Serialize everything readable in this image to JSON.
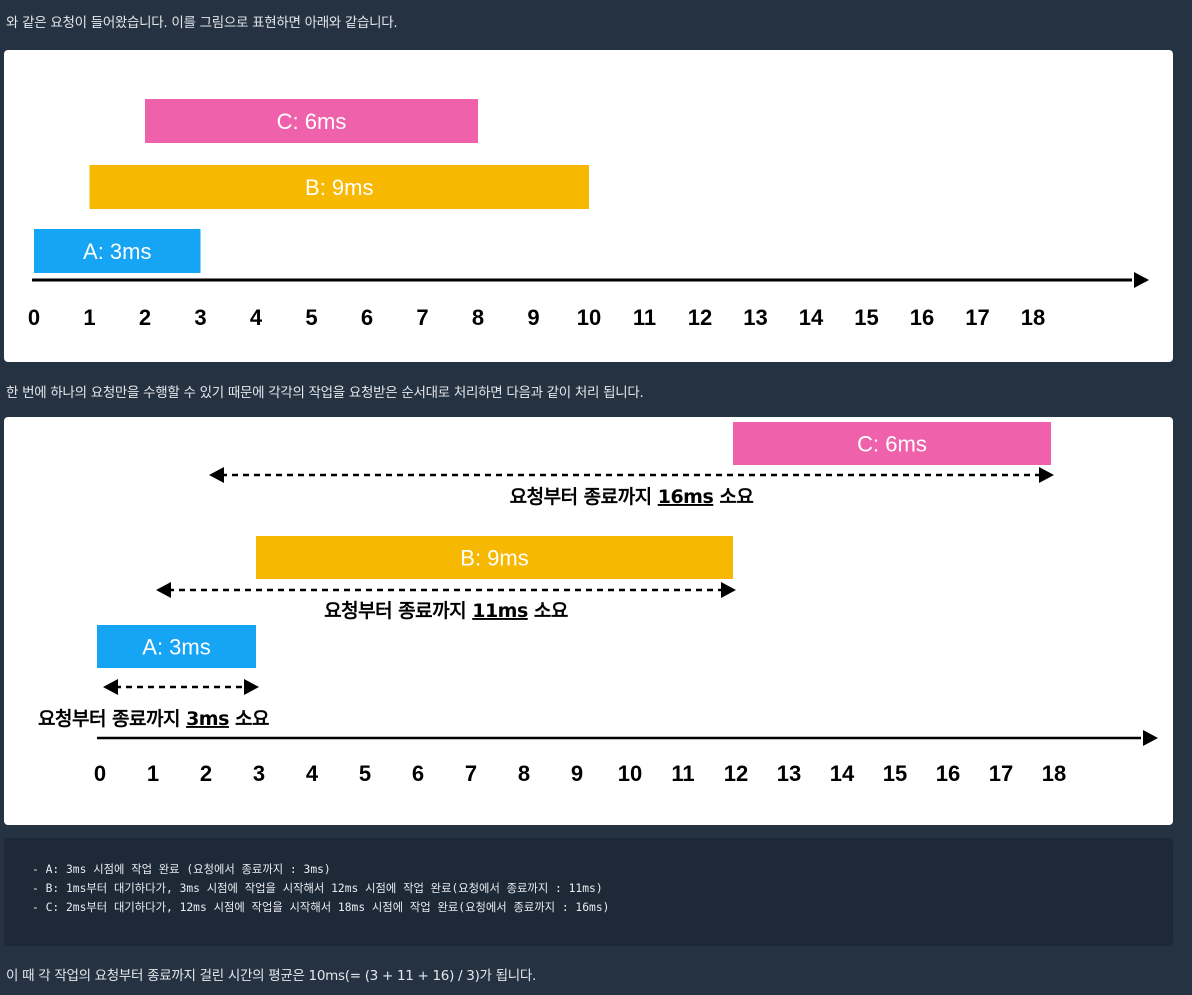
{
  "paragraphs": {
    "intro": "와 같은 요청이 들어왔습니다. 이를 그림으로 표현하면 아래와 같습니다.",
    "middle": "한 번에 하나의 요청만을 수행할 수 있기 때문에 각각의 작업을 요청받은 순서대로 처리하면 다음과 같이 처리 됩니다.",
    "conclusion": "이 때 각 작업의 요청부터 종료까지 걸린 시간의 평균은 10ms(= (3 + 11 + 16) / 3)가 됩니다."
  },
  "figure1": {
    "bars": [
      {
        "label": "C: 6ms",
        "start": 2,
        "end": 8,
        "color": "#ef62ab"
      },
      {
        "label": "B: 9ms",
        "start": 1,
        "end": 10,
        "color": "#f6b800"
      },
      {
        "label": "A: 3ms",
        "start": 0,
        "end": 3,
        "color": "#16a4f4"
      }
    ],
    "ticks": [
      "0",
      "1",
      "2",
      "3",
      "4",
      "5",
      "6",
      "7",
      "8",
      "9",
      "10",
      "11",
      "12",
      "13",
      "14",
      "15",
      "16",
      "17",
      "18"
    ]
  },
  "figure2": {
    "bars": [
      {
        "label": "C: 6ms",
        "start": 12,
        "end": 18,
        "color": "#ef62ab"
      },
      {
        "label": "B: 9ms",
        "start": 3,
        "end": 12,
        "color": "#f6b800"
      },
      {
        "label": "A: 3ms",
        "start": 0,
        "end": 3,
        "color": "#16a4f4"
      }
    ],
    "spans": [
      {
        "from": 2,
        "to": 18,
        "prefix": "요청부터 종료까지 ",
        "value": "16ms",
        "suffix": " 소요"
      },
      {
        "from": 1,
        "to": 12,
        "prefix": "요청부터 종료까지 ",
        "value": "11ms",
        "suffix": " 소요"
      },
      {
        "from": 0,
        "to": 3,
        "prefix": "요청부터 종료까지 ",
        "value": "3ms",
        "suffix": " 소요"
      }
    ],
    "ticks": [
      "0",
      "1",
      "2",
      "3",
      "4",
      "5",
      "6",
      "7",
      "8",
      "9",
      "10",
      "11",
      "12",
      "13",
      "14",
      "15",
      "16",
      "17",
      "18"
    ]
  },
  "code_lines": [
    "- A: 3ms 시점에 작업 완료 (요청에서 종료까지 : 3ms)",
    "- B: 1ms부터 대기하다가, 3ms 시점에 작업을 시작해서 12ms 시점에 작업 완료(요청에서 종료까지 : 11ms)",
    "- C: 2ms부터 대기하다가, 12ms 시점에 작업을 시작해서 18ms 시점에 작업 완료(요청에서 종료까지 : 16ms)"
  ]
}
